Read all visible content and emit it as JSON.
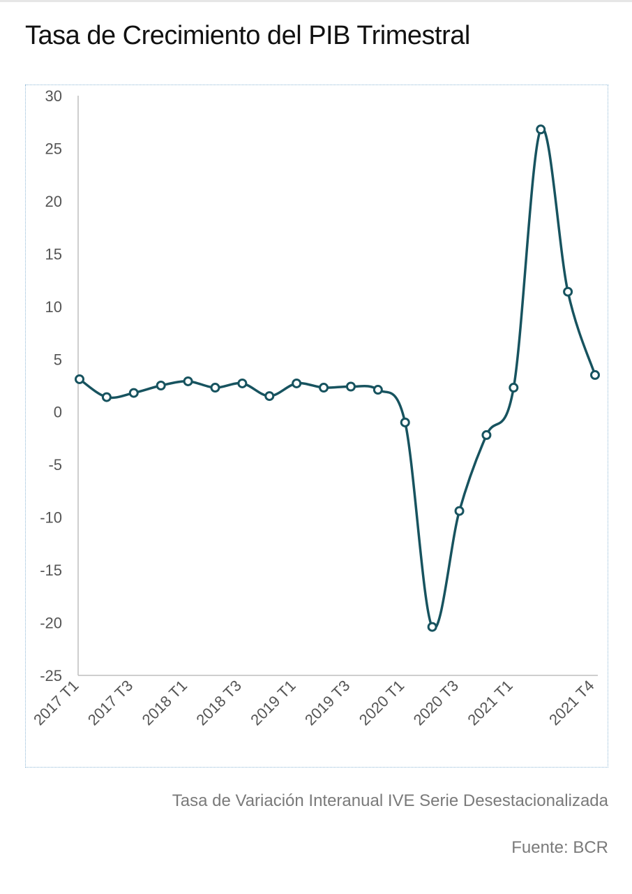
{
  "title": "Tasa de Crecimiento del PIB Trimestral",
  "subtitle": "Tasa de Variación Interanual IVE Serie Desestacionalizada",
  "source": "Fuente: BCR",
  "chart_data": {
    "type": "line",
    "title": "Tasa de Crecimiento del PIB Trimestral",
    "xlabel": "",
    "ylabel": "",
    "ylim": [
      -25,
      30
    ],
    "yticks": [
      30,
      25,
      20,
      15,
      10,
      5,
      0,
      -5,
      -10,
      -15,
      -20,
      -25
    ],
    "grid": false,
    "categories": [
      "2017 T1",
      "2017 T2",
      "2017 T3",
      "2017 T4",
      "2018 T1",
      "2018 T2",
      "2018 T3",
      "2018 T4",
      "2019 T1",
      "2019 T2",
      "2019 T3",
      "2019 T4",
      "2020 T1",
      "2020 T2",
      "2020 T3",
      "2020 T4",
      "2021 T1",
      "2021 T2",
      "2021 T3",
      "2021 T4"
    ],
    "xtick_labels": [
      "2017 T1",
      "",
      "2017 T3",
      "",
      "2018 T1",
      "",
      "2018 T3",
      "",
      "2019 T1",
      "",
      "2019 T3",
      "",
      "2020 T1",
      "",
      "2020 T3",
      "",
      "2021 T1",
      "",
      "",
      "2021 T4"
    ],
    "series": [
      {
        "values": [
          3.1,
          1.4,
          1.8,
          2.5,
          2.9,
          2.3,
          2.7,
          1.5,
          2.7,
          2.3,
          2.4,
          2.1,
          -1.0,
          -20.4,
          -9.4,
          -2.2,
          2.3,
          26.8,
          11.4,
          3.5
        ],
        "color": "#17535f",
        "marker": "circle-open",
        "smooth": true
      }
    ]
  }
}
